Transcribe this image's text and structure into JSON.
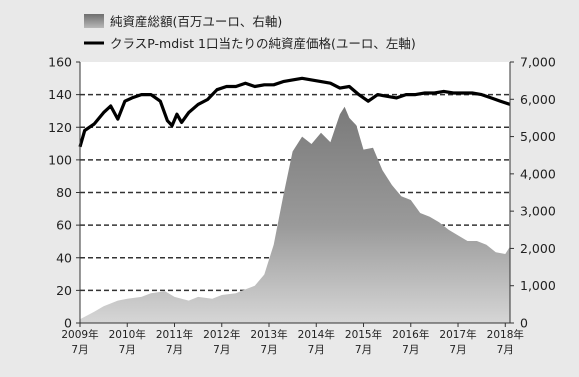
{
  "chart_data": {
    "type": "area",
    "title": "",
    "legend": [
      {
        "name": "純資産総額(百万ユーロ、右軸)",
        "style": "area",
        "color": "#8c8c8c"
      },
      {
        "name": "クラスP-mdist 1口当たりの純資産価格(ユーロ、左軸)",
        "style": "line",
        "color": "#000000"
      }
    ],
    "legend_position": "top-left",
    "grid": "horizontal-dashed",
    "x_categories": [
      {
        "year": "2009年",
        "month": "7月"
      },
      {
        "year": "2010年",
        "month": "7月"
      },
      {
        "year": "2011年",
        "month": "7月"
      },
      {
        "year": "2012年",
        "month": "7月"
      },
      {
        "year": "2013年",
        "month": "7月"
      },
      {
        "year": "2014年",
        "month": "7月"
      },
      {
        "year": "2015年",
        "month": "7月"
      },
      {
        "year": "2016年",
        "month": "7月"
      },
      {
        "year": "2017年",
        "month": "7月"
      },
      {
        "year": "2018年",
        "month": "7月"
      }
    ],
    "left_axis": {
      "ticks": [
        "0",
        "20",
        "40",
        "60",
        "80",
        "100",
        "120",
        "140",
        "160"
      ],
      "ylim": [
        0,
        160
      ]
    },
    "right_axis": {
      "ticks": [
        "0",
        "1,000",
        "2,000",
        "3,000",
        "4,000",
        "5,000",
        "6,000",
        "7,000"
      ],
      "ylim": [
        0,
        7000
      ]
    },
    "series": [
      {
        "name": "純資産総額(百万ユーロ、右軸)",
        "axis": "right",
        "type": "area",
        "x": [
          2009.5,
          2009.8,
          2010.0,
          2010.3,
          2010.5,
          2010.8,
          2011.0,
          2011.3,
          2011.5,
          2011.8,
          2012.0,
          2012.3,
          2012.5,
          2012.8,
          2013.0,
          2013.2,
          2013.4,
          2013.6,
          2013.8,
          2014.0,
          2014.2,
          2014.4,
          2014.6,
          2014.8,
          2015.0,
          2015.1,
          2015.2,
          2015.35,
          2015.5,
          2015.7,
          2015.9,
          2016.1,
          2016.3,
          2016.5,
          2016.7,
          2016.9,
          2017.1,
          2017.3,
          2017.5,
          2017.7,
          2017.9,
          2018.1,
          2018.3,
          2018.5,
          2018.6
        ],
        "values": [
          100,
          300,
          450,
          600,
          650,
          700,
          800,
          850,
          700,
          600,
          700,
          650,
          750,
          800,
          900,
          1000,
          1300,
          2100,
          3400,
          4600,
          5000,
          4800,
          5100,
          4850,
          5600,
          5800,
          5500,
          5300,
          4650,
          4700,
          4100,
          3700,
          3400,
          3300,
          2950,
          2850,
          2700,
          2500,
          2350,
          2200,
          2200,
          2100,
          1900,
          1850,
          2050
        ]
      },
      {
        "name": "クラスP-mdist 1口当たりの純資産価格(ユーロ、左軸)",
        "axis": "left",
        "type": "line",
        "x": [
          2009.5,
          2009.6,
          2009.8,
          2010.0,
          2010.15,
          2010.3,
          2010.45,
          2010.6,
          2010.8,
          2011.0,
          2011.2,
          2011.35,
          2011.45,
          2011.55,
          2011.65,
          2011.8,
          2012.0,
          2012.2,
          2012.4,
          2012.6,
          2012.8,
          2013.0,
          2013.2,
          2013.4,
          2013.6,
          2013.8,
          2014.0,
          2014.2,
          2014.4,
          2014.6,
          2014.8,
          2015.0,
          2015.2,
          2015.4,
          2015.6,
          2015.8,
          2016.0,
          2016.2,
          2016.4,
          2016.6,
          2016.8,
          2017.0,
          2017.2,
          2017.4,
          2017.6,
          2017.8,
          2018.0,
          2018.2,
          2018.4,
          2018.6
        ],
        "values": [
          108,
          118,
          122,
          129,
          133,
          125,
          136,
          138,
          140,
          140,
          136,
          124,
          121,
          128,
          123,
          129,
          134,
          137,
          143,
          145,
          145,
          147,
          145,
          146,
          146,
          148,
          149,
          150,
          149,
          148,
          147,
          144,
          145,
          140,
          136,
          140,
          139,
          138,
          140,
          140,
          141,
          141,
          142,
          141,
          141,
          141,
          140,
          138,
          136,
          134
        ]
      }
    ]
  }
}
